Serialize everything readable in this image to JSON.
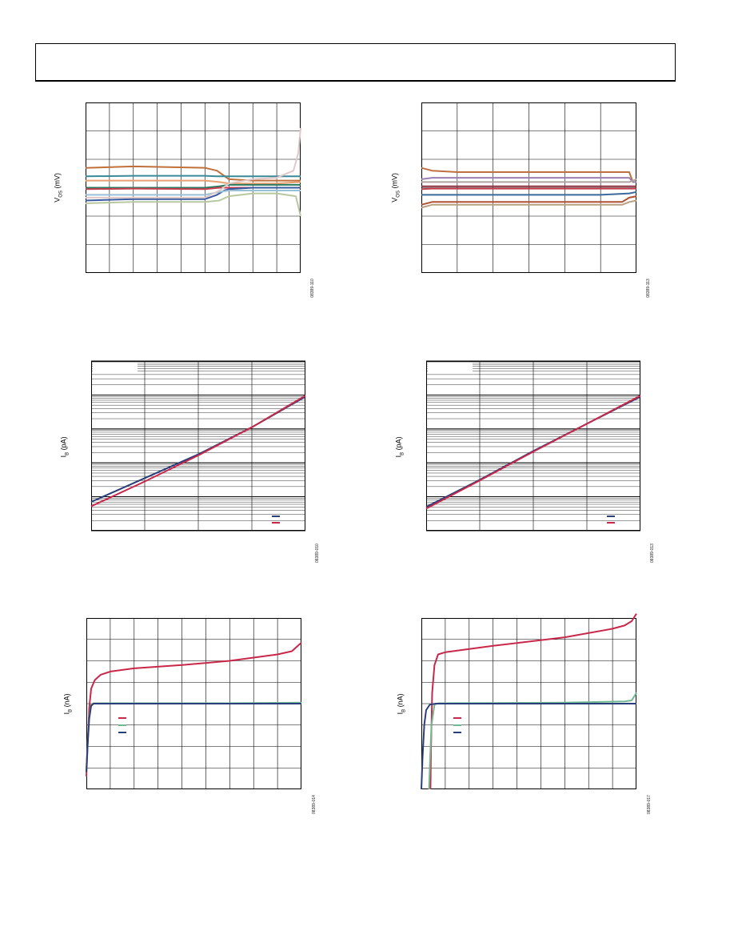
{
  "page": {
    "charts": [
      {
        "id": "c1",
        "ylabel_main": "V",
        "ylabel_sub": "OS",
        "ylabel_unit": " (mV)",
        "code": "08389-110"
      },
      {
        "id": "c2",
        "ylabel_main": "V",
        "ylabel_sub": "OS",
        "ylabel_unit": " (mV)",
        "code": "08389-113"
      },
      {
        "id": "c3",
        "ylabel_main": "I",
        "ylabel_sub": "B",
        "ylabel_unit": " (pA)",
        "code": "08389-010"
      },
      {
        "id": "c4",
        "ylabel_main": "I",
        "ylabel_sub": "B",
        "ylabel_unit": " (pA)",
        "code": "08389-013"
      },
      {
        "id": "c5",
        "ylabel_main": "I",
        "ylabel_sub": "B",
        "ylabel_unit": " (nA)",
        "code": "08389-014"
      },
      {
        "id": "c6",
        "ylabel_main": "I",
        "ylabel_sub": "B",
        "ylabel_unit": " (nA)",
        "code": "08389-017"
      }
    ]
  },
  "chart_data": [
    {
      "type": "line",
      "ylabel": "VOS (mV)",
      "xlim": [
        0,
        9
      ],
      "ylim": [
        0,
        6
      ],
      "grid": true,
      "series": [
        {
          "color": "#c0703a",
          "x": [
            0,
            2,
            5,
            5.5,
            6,
            7,
            8,
            8.5,
            9
          ],
          "y": [
            3.7,
            3.75,
            3.7,
            3.6,
            3.3,
            3.25,
            3.25,
            3.25,
            3.25
          ]
        },
        {
          "color": "#3a8a9a",
          "x": [
            0,
            2,
            5,
            5.5,
            6,
            7,
            8,
            9
          ],
          "y": [
            3.4,
            3.42,
            3.42,
            3.4,
            3.4,
            3.4,
            3.4,
            3.4
          ]
        },
        {
          "color": "#e8a070",
          "x": [
            0,
            2,
            5,
            5.6,
            6,
            7,
            8,
            9
          ],
          "y": [
            3.25,
            3.25,
            3.25,
            3.2,
            3.15,
            3.15,
            3.15,
            3.2
          ]
        },
        {
          "color": "#2a7a60",
          "x": [
            0,
            2,
            5,
            5.6,
            6,
            7,
            8,
            9
          ],
          "y": [
            3.0,
            3.0,
            3.0,
            3.05,
            3.1,
            3.1,
            3.1,
            3.1
          ]
        },
        {
          "color": "#c84050",
          "x": [
            0,
            2,
            5,
            5.6,
            6,
            7,
            8,
            9
          ],
          "y": [
            2.95,
            2.97,
            2.95,
            3.0,
            3.0,
            3.0,
            3.0,
            3.0
          ]
        },
        {
          "color": "#3a5aa0",
          "x": [
            0,
            2,
            5,
            5.5,
            5.8,
            6,
            7,
            8,
            9
          ],
          "y": [
            2.55,
            2.6,
            2.6,
            2.75,
            2.9,
            2.95,
            3.0,
            3.0,
            3.0
          ]
        },
        {
          "color": "#9ac0d8",
          "x": [
            0,
            2,
            5,
            5.6,
            6,
            7,
            8,
            9
          ],
          "y": [
            2.75,
            2.75,
            2.75,
            2.85,
            2.9,
            2.9,
            2.9,
            2.9
          ]
        },
        {
          "color": "#b8c8a0",
          "x": [
            0,
            2,
            5,
            5.6,
            6,
            7,
            8,
            8.8,
            9
          ],
          "y": [
            2.45,
            2.5,
            2.5,
            2.55,
            2.7,
            2.8,
            2.8,
            2.7,
            2.0
          ]
        },
        {
          "color": "#e0c8c8",
          "x": [
            0,
            2,
            5,
            5.6,
            6,
            7,
            8,
            8.7,
            8.9,
            9
          ],
          "y": [
            2.65,
            2.65,
            2.65,
            2.9,
            3.15,
            3.3,
            3.35,
            3.6,
            4.2,
            5.1
          ]
        }
      ]
    },
    {
      "type": "line",
      "ylabel": "VOS (mV)",
      "xlim": [
        0,
        6
      ],
      "ylim": [
        0,
        6
      ],
      "grid": true,
      "series": [
        {
          "color": "#c07040",
          "x": [
            0,
            0.3,
            1,
            5,
            5.8,
            5.9,
            6
          ],
          "y": [
            3.7,
            3.6,
            3.55,
            3.55,
            3.55,
            3.2,
            3.2
          ]
        },
        {
          "color": "#9a80b0",
          "x": [
            0,
            0.3,
            1,
            5,
            5.8,
            5.9,
            6
          ],
          "y": [
            3.3,
            3.35,
            3.35,
            3.35,
            3.35,
            3.2,
            3.2
          ]
        },
        {
          "color": "#b0a0a0",
          "x": [
            0,
            0.3,
            1,
            5,
            5.8,
            6
          ],
          "y": [
            3.2,
            3.2,
            3.2,
            3.2,
            3.2,
            3.3
          ]
        },
        {
          "color": "#8a3040",
          "x": [
            0,
            0.3,
            1,
            5,
            5.8,
            6
          ],
          "y": [
            3.05,
            3.05,
            3.05,
            3.05,
            3.05,
            3.05
          ]
        },
        {
          "color": "#c84050",
          "x": [
            0,
            0.3,
            1,
            5,
            5.8,
            6
          ],
          "y": [
            2.95,
            2.97,
            2.97,
            2.97,
            2.97,
            2.97
          ]
        },
        {
          "color": "#3a6a9a",
          "x": [
            0,
            0.3,
            1,
            5,
            5.8,
            6
          ],
          "y": [
            2.75,
            2.75,
            2.75,
            2.75,
            2.8,
            2.85
          ]
        },
        {
          "color": "#b05030",
          "x": [
            0,
            0.3,
            1,
            5,
            5.6,
            5.8,
            6
          ],
          "y": [
            2.4,
            2.5,
            2.5,
            2.5,
            2.5,
            2.65,
            2.7
          ]
        },
        {
          "color": "#b8a080",
          "x": [
            0,
            0.3,
            1,
            5,
            5.6,
            5.8,
            6
          ],
          "y": [
            2.3,
            2.4,
            2.4,
            2.4,
            2.4,
            2.5,
            2.55
          ]
        }
      ]
    },
    {
      "type": "line",
      "ylabel": "IB (pA)",
      "ylog": true,
      "xlim": [
        0,
        4
      ],
      "decades": 5,
      "grid": true,
      "series": [
        {
          "color": "#2a3f7a",
          "x": [
            0,
            1,
            2,
            3,
            4
          ],
          "y_decades": [
            0.85,
            1.55,
            2.25,
            3.05,
            3.95
          ]
        },
        {
          "color": "#c8284a",
          "x": [
            0,
            1,
            2,
            3,
            4
          ],
          "y_decades": [
            0.72,
            1.45,
            2.22,
            3.05,
            3.98
          ]
        }
      ]
    },
    {
      "type": "line",
      "ylabel": "IB (pA)",
      "ylog": true,
      "xlim": [
        0,
        4
      ],
      "decades": 5,
      "grid": true,
      "series": [
        {
          "color": "#2a3f7a",
          "x": [
            0,
            1,
            2,
            3,
            4
          ],
          "y_decades": [
            0.7,
            1.5,
            2.35,
            3.15,
            3.95
          ]
        },
        {
          "color": "#c8284a",
          "x": [
            0,
            1,
            2,
            3,
            4
          ],
          "y_decades": [
            0.65,
            1.48,
            2.33,
            3.15,
            3.98
          ]
        }
      ]
    },
    {
      "type": "line",
      "ylabel": "IB (nA)",
      "xlim": [
        0,
        9
      ],
      "ylim": [
        0,
        8
      ],
      "grid": true,
      "series": [
        {
          "color": "#c8284a",
          "x": [
            0,
            0.05,
            0.12,
            0.2,
            0.35,
            0.6,
            1,
            2,
            4,
            6,
            8,
            8.6,
            9
          ],
          "y": [
            0.6,
            2.0,
            3.8,
            4.7,
            5.1,
            5.35,
            5.5,
            5.65,
            5.8,
            6.0,
            6.3,
            6.45,
            6.85
          ]
        },
        {
          "color": "#70b890",
          "x": [
            0,
            0.05,
            0.12,
            0.2,
            0.3,
            1,
            3,
            6,
            9
          ],
          "y": [
            0.9,
            2.1,
            3.4,
            3.95,
            4.02,
            4.02,
            4.02,
            4.02,
            4.05
          ]
        },
        {
          "color": "#2a3f7a",
          "x": [
            0,
            0.05,
            0.12,
            0.2,
            0.3,
            1,
            3,
            6,
            9
          ],
          "y": [
            0.8,
            2.0,
            3.3,
            3.9,
            4.0,
            4.0,
            4.0,
            4.0,
            4.0
          ]
        }
      ]
    },
    {
      "type": "line",
      "ylabel": "IB (nA)",
      "xlim": [
        0,
        9
      ],
      "ylim": [
        0,
        8
      ],
      "grid": true,
      "series": [
        {
          "color": "#c8284a",
          "x": [
            0.38,
            0.4,
            0.45,
            0.55,
            0.7,
            1,
            3,
            6,
            8,
            8.5,
            8.8,
            9
          ],
          "y": [
            0,
            1.8,
            4.5,
            5.8,
            6.3,
            6.4,
            6.7,
            7.1,
            7.5,
            7.65,
            7.85,
            8.2
          ]
        },
        {
          "color": "#70b890",
          "x": [
            0.32,
            0.35,
            0.42,
            0.55,
            0.7,
            1,
            3,
            6,
            8.5,
            8.8,
            9
          ],
          "y": [
            0,
            1.0,
            3.0,
            3.95,
            4.02,
            4.02,
            4.03,
            4.05,
            4.1,
            4.15,
            4.5
          ]
        },
        {
          "color": "#2a3f7a",
          "x": [
            0,
            0.05,
            0.12,
            0.2,
            0.35,
            0.6,
            1,
            3,
            6,
            9
          ],
          "y": [
            0,
            1.5,
            3.0,
            3.7,
            3.95,
            4.0,
            4.0,
            4.0,
            4.0,
            4.0
          ]
        }
      ]
    }
  ],
  "legends": [
    {
      "chart": "c3",
      "items": [
        {
          "color": "#2a3f7a"
        },
        {
          "color": "#c8284a"
        }
      ]
    },
    {
      "chart": "c4",
      "items": [
        {
          "color": "#2a3f7a"
        },
        {
          "color": "#c8284a"
        }
      ]
    },
    {
      "chart": "c5",
      "items": [
        {
          "color": "#c8284a"
        },
        {
          "color": "#70b890"
        },
        {
          "color": "#2a3f7a"
        }
      ]
    },
    {
      "chart": "c6",
      "items": [
        {
          "color": "#c8284a"
        },
        {
          "color": "#70b890"
        },
        {
          "color": "#2a3f7a"
        }
      ]
    }
  ]
}
